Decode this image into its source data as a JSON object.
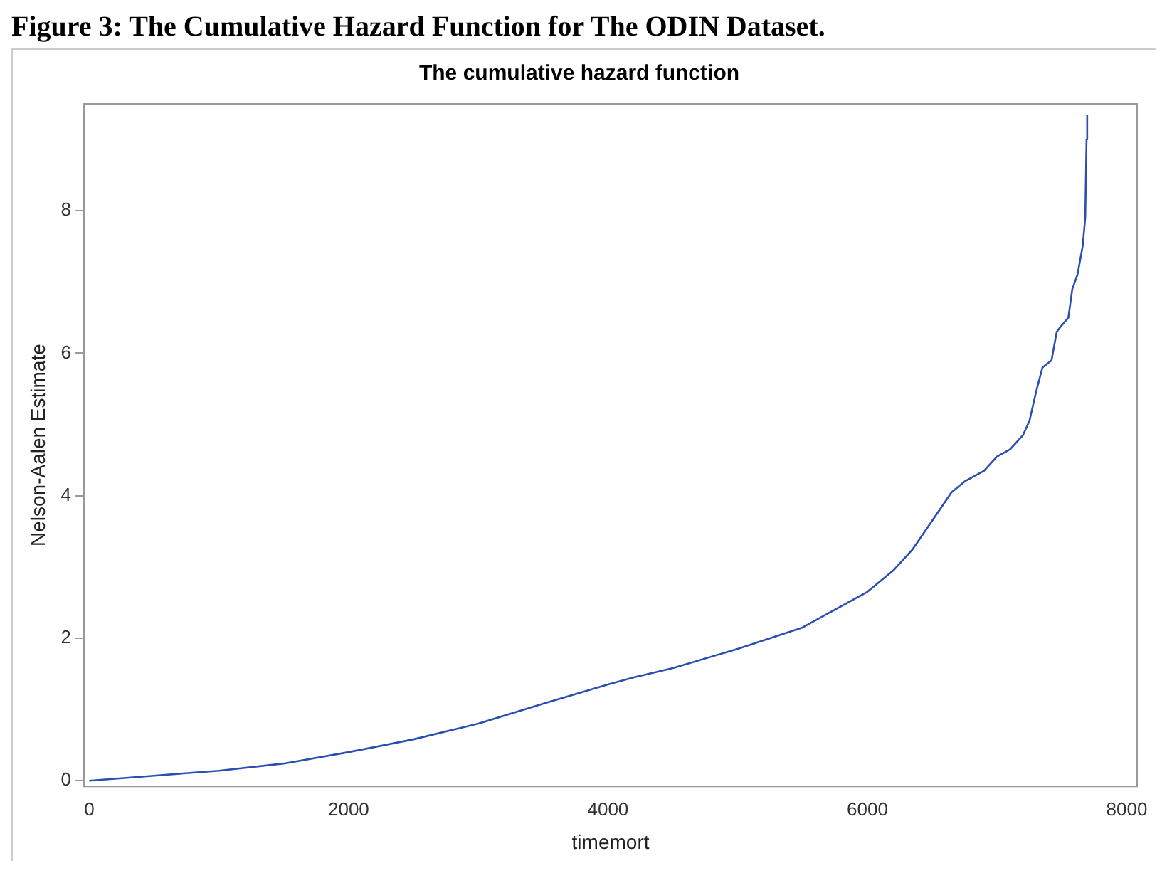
{
  "chart_data": {
    "type": "line",
    "title": "Figure 3: The Cumulative Hazard Function for The ODIN Dataset.",
    "subtitle": "The cumulative hazard function",
    "xlabel": "timemort",
    "ylabel": "Nelson-Aalen Estimate",
    "x": [
      0,
      500,
      1000,
      1500,
      2000,
      2500,
      3000,
      3500,
      4000,
      4200,
      4500,
      5000,
      5500,
      6000,
      6200,
      6350,
      6500,
      6650,
      6750,
      6900,
      7000,
      7100,
      7200,
      7250,
      7300,
      7350,
      7420,
      7460,
      7480,
      7550,
      7580,
      7620,
      7660,
      7680,
      7690,
      7695
    ],
    "series": [
      {
        "color": "#2a4fb0",
        "values": [
          0,
          0.07,
          0.14,
          0.24,
          0.4,
          0.58,
          0.8,
          1.08,
          1.35,
          1.45,
          1.58,
          1.85,
          2.15,
          2.65,
          2.95,
          3.25,
          3.65,
          4.05,
          4.2,
          4.35,
          4.55,
          4.65,
          4.85,
          5.05,
          5.45,
          5.8,
          5.9,
          6.3,
          6.35,
          6.5,
          6.9,
          7.1,
          7.5,
          7.9,
          9.0,
          9.35
        ]
      }
    ],
    "xlim": [
      -40,
      8080
    ],
    "ylim": [
      -0.08,
      9.5
    ],
    "xticks": [
      0,
      2000,
      4000,
      6000,
      8000
    ],
    "yticks": [
      0,
      2,
      4,
      6,
      8
    ],
    "grid": false,
    "legend": false,
    "marker": "none",
    "line_style": "solid"
  }
}
